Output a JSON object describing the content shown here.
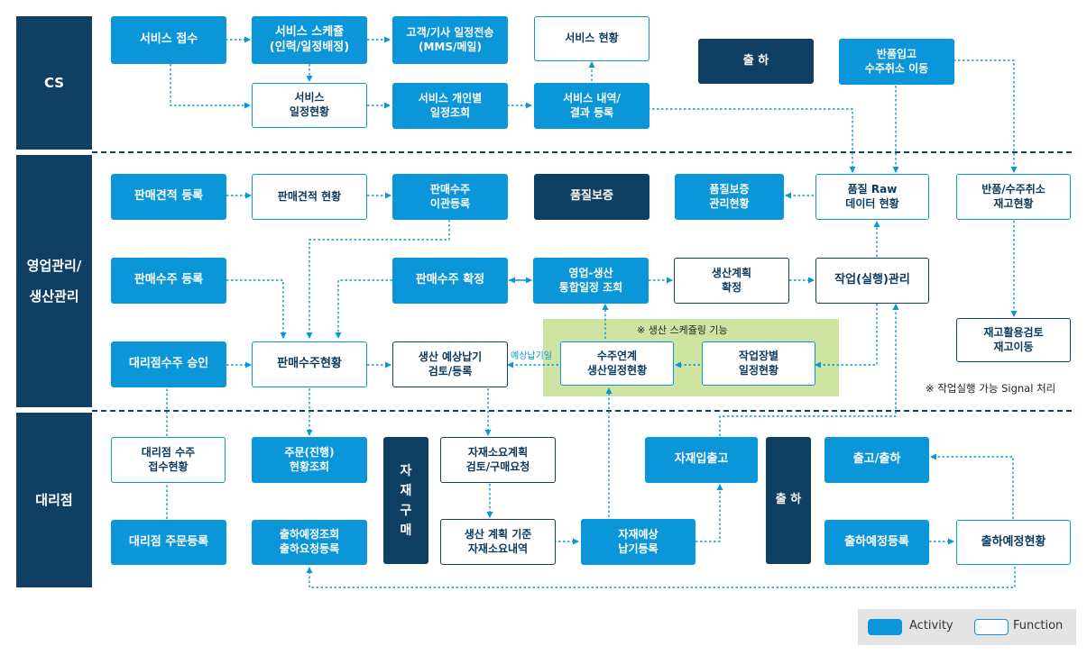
{
  "lanes": {
    "cs": "CS",
    "sales_production": "영업관리/\n생산관리",
    "dealer": "대리점"
  },
  "nodes": {
    "svc_receive": "서비스 접수",
    "svc_schedule": "서비스 스케쥴\n(인력/일정배정)",
    "cust_notify": "고객/기사 일정전송\n(MMS/메일)",
    "svc_status": "서비스 현황",
    "ship_cs": "출 하",
    "return_in": "반품입고\n수주취소 이동",
    "svc_sched_status": "서비스\n일정현황",
    "svc_personal": "서비스 개인별\n일정조회",
    "svc_result": "서비스 내역/\n결과 등록",
    "quote_reg": "판매견적 등록",
    "quote_status": "판매견적 현황",
    "order_transfer": "판매수주\n이관등록",
    "qa": "품질보증",
    "qa_mgmt": "품질보증\n관리현황",
    "quality_raw": "품질 Raw\n데이터 현황",
    "return_cancel_inv": "반품/수주취소\n재고현황",
    "order_reg": "판매수주 등록",
    "order_confirm": "판매수주 확정",
    "integrated_schedule": "영업-생산\n통합일정 조회",
    "prod_plan_confirm": "생산계획\n확정",
    "work_mgmt": "작업(실행)관리",
    "inventory_review": "재고활용검토\n재고이동",
    "dealer_order_approve": "대리점수주 승인",
    "order_status": "판매수주현황",
    "expected_delivery": "생산 예상납기\n검토/등록",
    "order_link": "수주연계\n생산일정현황",
    "work_center_sched": "작업장별\n일정현황",
    "dealer_order_status": "대리점 수주\n접수현황",
    "order_progress": "주문(진행)\n현황조회",
    "material_purchase": "자\n재\n구\n매",
    "material_req_plan": "자재소요계획\n검토/구매요청",
    "material_io": "자재입출고",
    "ship_dealer": "출 하",
    "out_ship": "출고/출하",
    "dealer_order_reg": "대리점 주문등록",
    "ship_plan_query": "출하예정조회\n출하요청등록",
    "prod_plan_material": "생산 계획 기준\n자재소요내역",
    "material_expected_delivery": "자재예상\n납기등록",
    "ship_plan_reg": "출하예정등록",
    "ship_plan_status": "출하예정현황"
  },
  "annotations": {
    "scheduling_label": "※ 생산 스케쥴링 기능",
    "expected_date_label": "예상납기일",
    "signal_note": "※ 작업실행 가능 Signal 처리"
  },
  "legend": {
    "activity": "Activity",
    "function": "Function"
  },
  "colors": {
    "lane": "#103f64",
    "activity": "#0a96d8",
    "function_border": "#0a96d8",
    "dark_box": "#103f64",
    "scheduling_area": "#cde4a2",
    "legend_bg": "#e4e4e4"
  }
}
